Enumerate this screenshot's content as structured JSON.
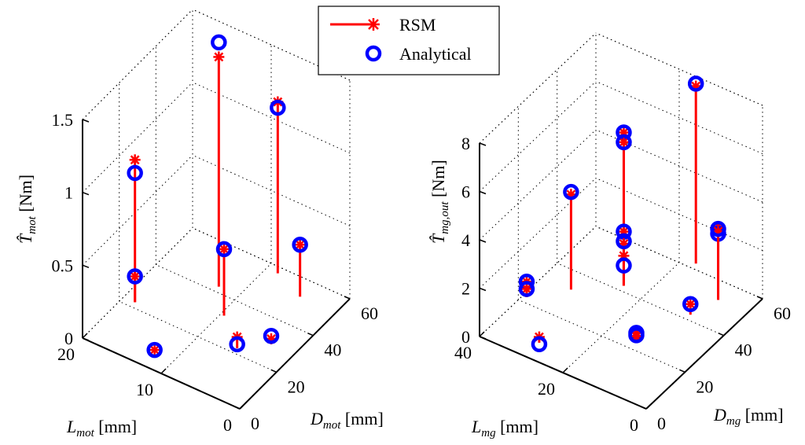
{
  "legend": {
    "rsm_label": "RSM",
    "analytical_label": "Analytical"
  },
  "colors": {
    "rsm": "#ff0000",
    "analytical": "#0000ff",
    "axis": "#000000"
  },
  "chart_data": [
    {
      "type": "scatter",
      "subtype": "3d-stem",
      "x_axis_label": "L",
      "x_axis_sub": "mot",
      "x_axis_unit": " [mm]",
      "y_axis_label": "D",
      "y_axis_sub": "mot",
      "y_axis_unit": " [mm]",
      "z_axis_label": "T̂",
      "z_axis_sub": "mot",
      "z_axis_unit": " [Nm]",
      "x_ticks": [
        "0",
        "10",
        "20"
      ],
      "y_ticks": [
        "0",
        "20",
        "40",
        "60"
      ],
      "z_ticks": [
        "0",
        "0.5",
        "1",
        "1.5"
      ],
      "xlim": [
        0,
        20
      ],
      "ylim": [
        0,
        60
      ],
      "zlim": [
        0,
        1.5
      ],
      "points": [
        {
          "x": 18,
          "y": 20,
          "rsm": 1.02,
          "analytical": 0.93
        },
        {
          "x": 18,
          "y": 20,
          "rsm": 0.22,
          "analytical": 0.22
        },
        {
          "x": 12,
          "y": 40,
          "rsm": 1.62,
          "analytical": 1.72
        },
        {
          "x": 9,
          "y": 30,
          "rsm": 0.5,
          "analytical": 0.5
        },
        {
          "x": 8,
          "y": 55,
          "rsm": 1.22,
          "analytical": 1.18
        },
        {
          "x": 4,
          "y": 50,
          "rsm": 0.4,
          "analytical": 0.4
        },
        {
          "x": 12,
          "y": 5,
          "rsm": 0.05,
          "analytical": 0.05
        },
        {
          "x": 5,
          "y": 20,
          "rsm": 0.12,
          "analytical": 0.07
        },
        {
          "x": 3,
          "y": 30,
          "rsm": 0.03,
          "analytical": 0.05
        }
      ]
    },
    {
      "type": "scatter",
      "subtype": "3d-stem",
      "x_axis_label": "L",
      "x_axis_sub": "mg",
      "x_axis_unit": " [mm]",
      "y_axis_label": "D",
      "y_axis_sub": "mg",
      "y_axis_unit": " [mm]",
      "z_axis_label": "T̂",
      "z_axis_sub": "mg,out",
      "z_axis_unit": " [Nm]",
      "x_ticks": [
        "0",
        "20",
        "40"
      ],
      "y_ticks": [
        "0",
        "20",
        "40",
        "60"
      ],
      "z_ticks": [
        "0",
        "2",
        "4",
        "6",
        "8"
      ],
      "xlim": [
        0,
        40
      ],
      "ylim": [
        0,
        60
      ],
      "zlim": [
        0,
        8
      ],
      "points": [
        {
          "x": 38,
          "y": 20,
          "rsm": 0.9,
          "analytical": 0.9
        },
        {
          "x": 38,
          "y": 20,
          "rsm": 0.6,
          "analytical": 0.6
        },
        {
          "x": 32,
          "y": 30,
          "rsm": 4.2,
          "analytical": 4.3
        },
        {
          "x": 28,
          "y": 5,
          "rsm": 0.5,
          "analytical": 0.2
        },
        {
          "x": 24,
          "y": 40,
          "rsm": 6.6,
          "analytical": 6.6
        },
        {
          "x": 24,
          "y": 40,
          "rsm": 6.2,
          "analytical": 6.2
        },
        {
          "x": 24,
          "y": 40,
          "rsm": 2.5,
          "analytical": 2.5
        },
        {
          "x": 24,
          "y": 40,
          "rsm": 2.0,
          "analytical": 2.1
        },
        {
          "x": 24,
          "y": 40,
          "rsm": 1.5,
          "analytical": 1.1
        },
        {
          "x": 14,
          "y": 25,
          "rsm": 0.2,
          "analytical": 0.2
        },
        {
          "x": 14,
          "y": 25,
          "rsm": 0.05,
          "analytical": 0.1
        },
        {
          "x": 16,
          "y": 60,
          "rsm": 7.6,
          "analytical": 7.7
        },
        {
          "x": 6,
          "y": 50,
          "rsm": 3.3,
          "analytical": 3.0
        },
        {
          "x": 6,
          "y": 50,
          "rsm": 3.1,
          "analytical": 3.2
        },
        {
          "x": 8,
          "y": 40,
          "rsm": 0.7,
          "analytical": 0.7
        }
      ]
    }
  ]
}
